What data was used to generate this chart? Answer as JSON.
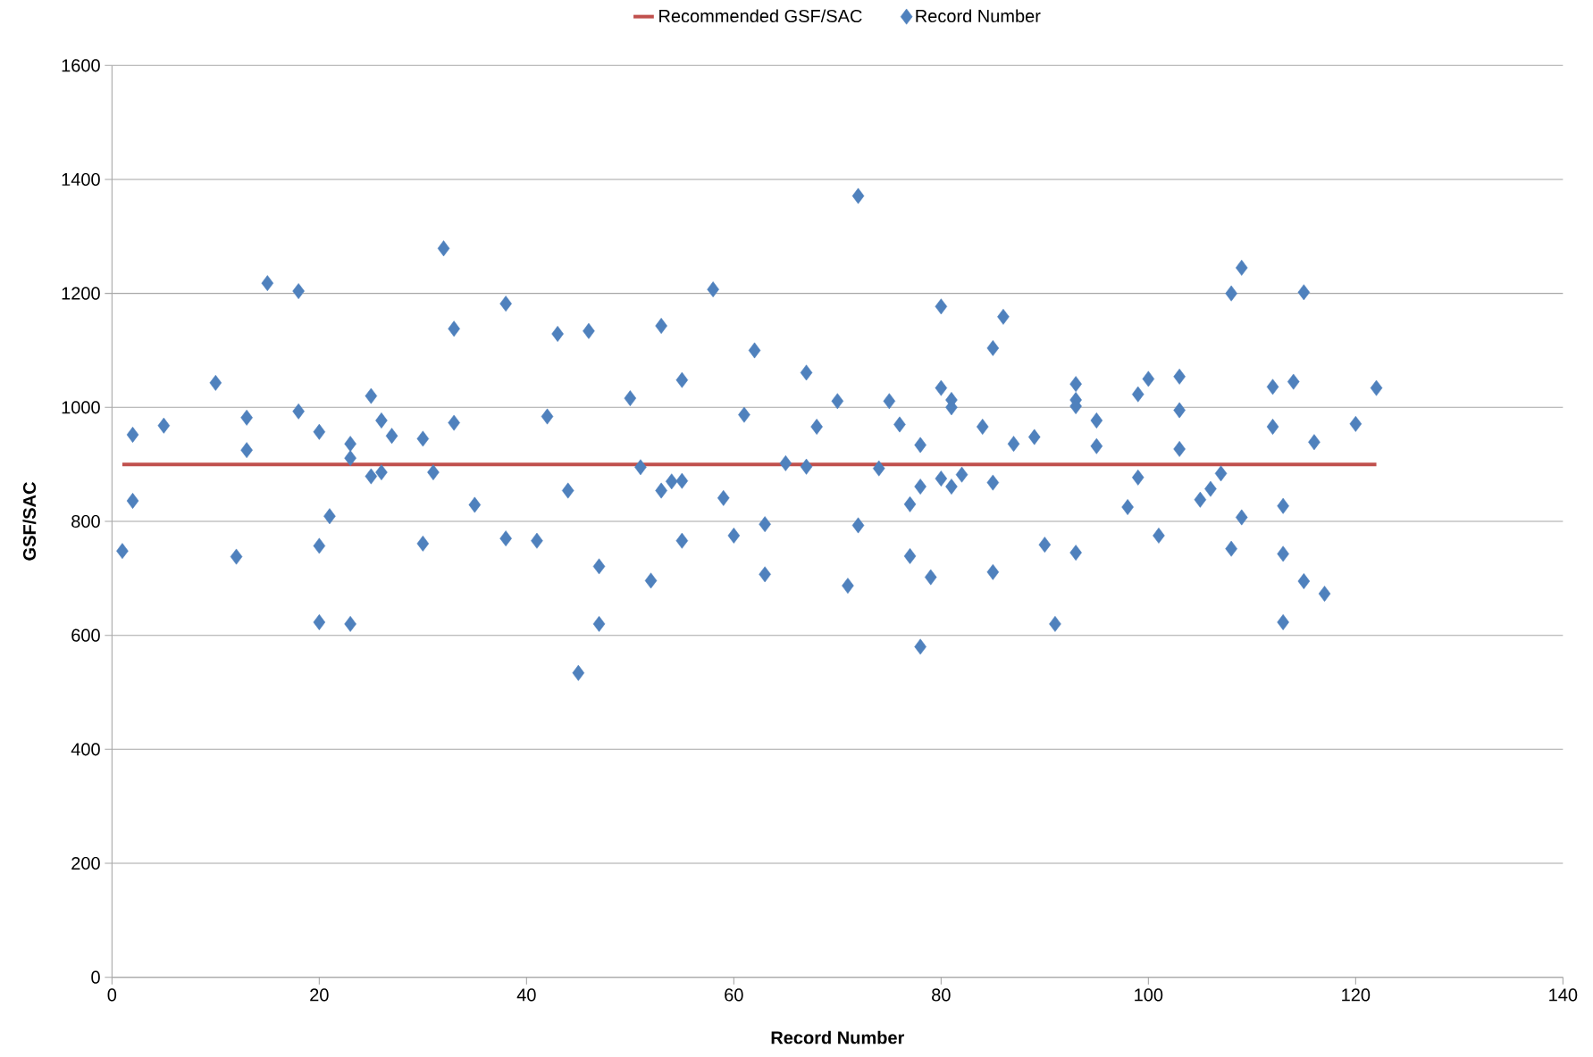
{
  "chart_data": {
    "type": "scatter",
    "xlabel": "Record Number",
    "ylabel": "GSF/SAC",
    "xlim": [
      0,
      140
    ],
    "ylim": [
      0,
      1600
    ],
    "xticks": [
      0,
      20,
      40,
      60,
      80,
      100,
      120,
      140
    ],
    "yticks": [
      0,
      200,
      400,
      600,
      800,
      1000,
      1200,
      1400,
      1600
    ],
    "grid": "y",
    "legend": "top",
    "series": [
      {
        "name": "Recommended GSF/SAC",
        "type": "line",
        "color": "#c0504d",
        "x": [
          1,
          122
        ],
        "values": [
          900,
          900
        ]
      },
      {
        "name": "Record Number",
        "marker": "diamond",
        "color": "#4f81bd",
        "x": [
          1,
          2,
          2,
          5,
          10,
          12,
          13,
          13,
          15,
          18,
          18,
          20,
          20,
          20,
          21,
          23,
          23,
          23,
          25,
          25,
          26,
          26,
          27,
          30,
          30,
          31,
          32,
          33,
          33,
          35,
          38,
          38,
          41,
          42,
          43,
          44,
          45,
          46,
          47,
          47,
          50,
          51,
          52,
          53,
          53,
          54,
          55,
          55,
          55,
          58,
          59,
          60,
          61,
          62,
          63,
          63,
          65,
          67,
          67,
          68,
          70,
          71,
          72,
          72,
          74,
          75,
          76,
          77,
          77,
          78,
          78,
          78,
          79,
          80,
          80,
          80,
          81,
          81,
          81,
          82,
          84,
          85,
          85,
          85,
          86,
          87,
          89,
          90,
          91,
          93,
          93,
          93,
          93,
          95,
          95,
          98,
          99,
          99,
          100,
          101,
          103,
          103,
          103,
          105,
          106,
          107,
          108,
          108,
          109,
          109,
          112,
          112,
          113,
          113,
          113,
          114,
          115,
          115,
          116,
          117,
          120,
          122
        ],
        "values": [
          748,
          952,
          836,
          968,
          1043,
          738,
          982,
          925,
          1218,
          1204,
          993,
          957,
          757,
          623,
          809,
          936,
          911,
          620,
          1020,
          879,
          977,
          886,
          950,
          945,
          761,
          886,
          1279,
          1138,
          973,
          829,
          1182,
          770,
          766,
          984,
          1129,
          854,
          534,
          1134,
          721,
          620,
          1016,
          895,
          696,
          1143,
          854,
          870,
          1048,
          871,
          766,
          1207,
          841,
          775,
          987,
          1100,
          795,
          707,
          902,
          1061,
          896,
          966,
          1011,
          687,
          1371,
          793,
          893,
          1011,
          970,
          830,
          739,
          934,
          861,
          580,
          702,
          1177,
          1034,
          875,
          1013,
          1000,
          861,
          882,
          966,
          1104,
          868,
          711,
          1159,
          936,
          948,
          759,
          620,
          1041,
          1013,
          1002,
          745,
          977,
          932,
          825,
          1023,
          877,
          1050,
          775,
          1054,
          995,
          927,
          838,
          857,
          884,
          1200,
          752,
          1245,
          807,
          1036,
          966,
          827,
          743,
          623,
          1045,
          1202,
          695,
          939,
          673,
          971,
          1034
        ]
      }
    ]
  }
}
